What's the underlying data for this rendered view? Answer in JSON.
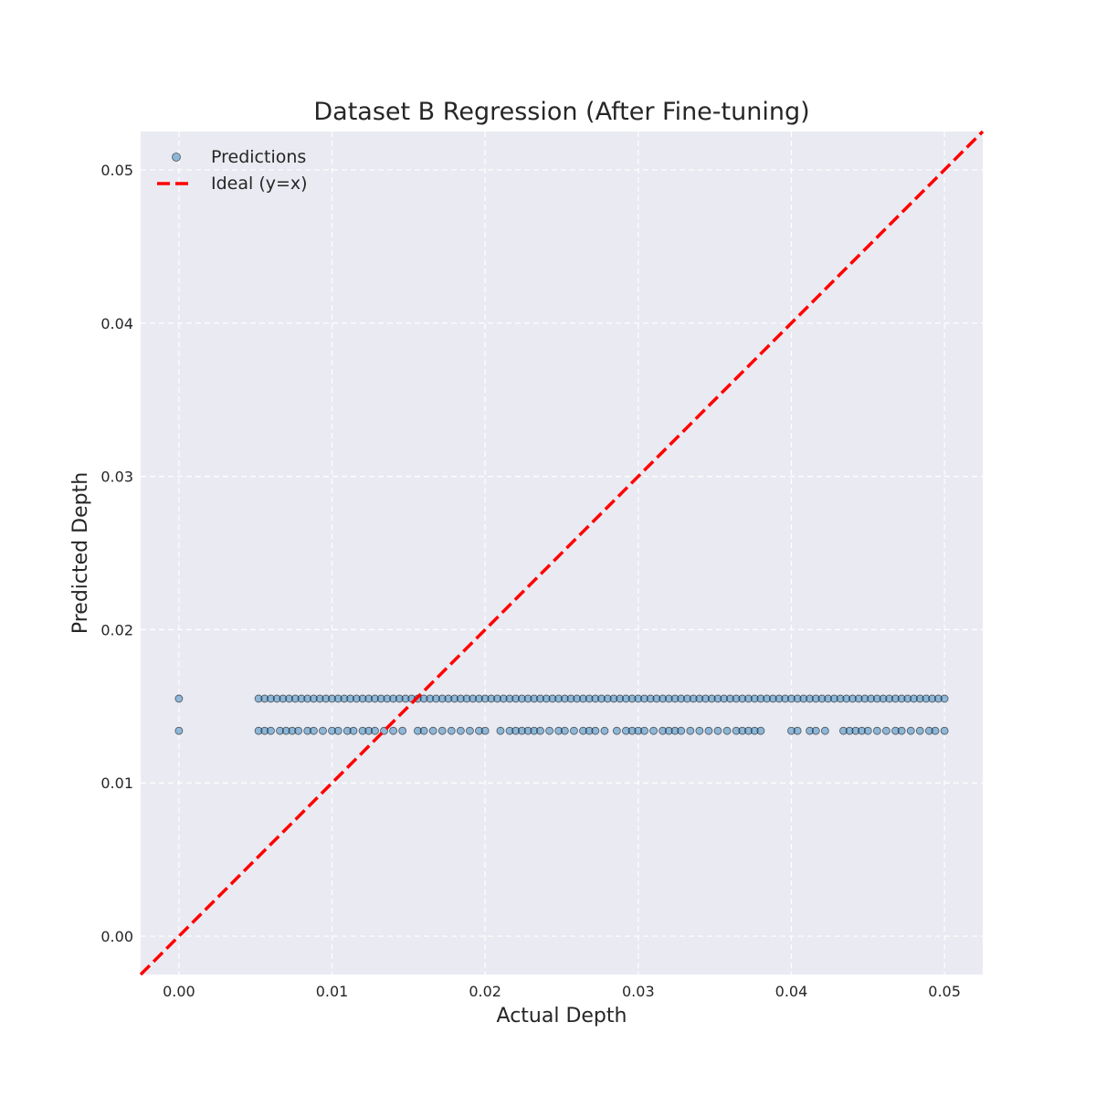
{
  "chart_data": {
    "type": "scatter",
    "title": "Dataset B Regression (After Fine-tuning)",
    "xlabel": "Actual Depth",
    "ylabel": "Predicted Depth",
    "xlim": [
      -0.0025,
      0.0525
    ],
    "ylim": [
      -0.0025,
      0.0525
    ],
    "xticks": [
      "0.00",
      "0.01",
      "0.02",
      "0.03",
      "0.04",
      "0.05"
    ],
    "yticks": [
      "0.00",
      "0.01",
      "0.02",
      "0.03",
      "0.04",
      "0.05"
    ],
    "grid": true,
    "grid_style": "dashed",
    "background": "#eaeaf2",
    "legend": {
      "placement": "top-left",
      "entries": [
        "Predictions",
        "Ideal (y=x)"
      ]
    },
    "series": [
      {
        "name": "Predictions",
        "kind": "scatter",
        "color": "#1f77b4",
        "edge_color": "#000000",
        "alpha": 0.45,
        "points": [
          [
            0.0,
            0.0155
          ],
          [
            0.0,
            0.0134
          ],
          [
            0.0052,
            0.0155
          ],
          [
            0.0056,
            0.0155
          ],
          [
            0.006,
            0.0155
          ],
          [
            0.0064,
            0.0155
          ],
          [
            0.0068,
            0.0155
          ],
          [
            0.0072,
            0.0155
          ],
          [
            0.0076,
            0.0155
          ],
          [
            0.008,
            0.0155
          ],
          [
            0.0084,
            0.0155
          ],
          [
            0.0088,
            0.0155
          ],
          [
            0.0092,
            0.0155
          ],
          [
            0.0096,
            0.0155
          ],
          [
            0.01,
            0.0155
          ],
          [
            0.0104,
            0.0155
          ],
          [
            0.0108,
            0.0155
          ],
          [
            0.0112,
            0.0155
          ],
          [
            0.0116,
            0.0155
          ],
          [
            0.012,
            0.0155
          ],
          [
            0.0124,
            0.0155
          ],
          [
            0.0128,
            0.0155
          ],
          [
            0.0132,
            0.0155
          ],
          [
            0.0136,
            0.0155
          ],
          [
            0.014,
            0.0155
          ],
          [
            0.0144,
            0.0155
          ],
          [
            0.0148,
            0.0155
          ],
          [
            0.0152,
            0.0155
          ],
          [
            0.0156,
            0.0155
          ],
          [
            0.016,
            0.0155
          ],
          [
            0.0164,
            0.0155
          ],
          [
            0.0168,
            0.0155
          ],
          [
            0.0172,
            0.0155
          ],
          [
            0.0176,
            0.0155
          ],
          [
            0.018,
            0.0155
          ],
          [
            0.0184,
            0.0155
          ],
          [
            0.0188,
            0.0155
          ],
          [
            0.0192,
            0.0155
          ],
          [
            0.0196,
            0.0155
          ],
          [
            0.02,
            0.0155
          ],
          [
            0.0204,
            0.0155
          ],
          [
            0.0208,
            0.0155
          ],
          [
            0.0212,
            0.0155
          ],
          [
            0.0216,
            0.0155
          ],
          [
            0.022,
            0.0155
          ],
          [
            0.0224,
            0.0155
          ],
          [
            0.0228,
            0.0155
          ],
          [
            0.0232,
            0.0155
          ],
          [
            0.0236,
            0.0155
          ],
          [
            0.024,
            0.0155
          ],
          [
            0.0244,
            0.0155
          ],
          [
            0.0248,
            0.0155
          ],
          [
            0.0252,
            0.0155
          ],
          [
            0.0256,
            0.0155
          ],
          [
            0.026,
            0.0155
          ],
          [
            0.0264,
            0.0155
          ],
          [
            0.0268,
            0.0155
          ],
          [
            0.0272,
            0.0155
          ],
          [
            0.0276,
            0.0155
          ],
          [
            0.028,
            0.0155
          ],
          [
            0.0284,
            0.0155
          ],
          [
            0.0288,
            0.0155
          ],
          [
            0.0292,
            0.0155
          ],
          [
            0.0296,
            0.0155
          ],
          [
            0.03,
            0.0155
          ],
          [
            0.0304,
            0.0155
          ],
          [
            0.0308,
            0.0155
          ],
          [
            0.0312,
            0.0155
          ],
          [
            0.0316,
            0.0155
          ],
          [
            0.032,
            0.0155
          ],
          [
            0.0324,
            0.0155
          ],
          [
            0.0328,
            0.0155
          ],
          [
            0.0332,
            0.0155
          ],
          [
            0.0336,
            0.0155
          ],
          [
            0.034,
            0.0155
          ],
          [
            0.0344,
            0.0155
          ],
          [
            0.0348,
            0.0155
          ],
          [
            0.0352,
            0.0155
          ],
          [
            0.0356,
            0.0155
          ],
          [
            0.036,
            0.0155
          ],
          [
            0.0364,
            0.0155
          ],
          [
            0.0368,
            0.0155
          ],
          [
            0.0372,
            0.0155
          ],
          [
            0.0376,
            0.0155
          ],
          [
            0.038,
            0.0155
          ],
          [
            0.0384,
            0.0155
          ],
          [
            0.0388,
            0.0155
          ],
          [
            0.0392,
            0.0155
          ],
          [
            0.0396,
            0.0155
          ],
          [
            0.04,
            0.0155
          ],
          [
            0.0404,
            0.0155
          ],
          [
            0.0408,
            0.0155
          ],
          [
            0.0412,
            0.0155
          ],
          [
            0.0416,
            0.0155
          ],
          [
            0.042,
            0.0155
          ],
          [
            0.0424,
            0.0155
          ],
          [
            0.0428,
            0.0155
          ],
          [
            0.0432,
            0.0155
          ],
          [
            0.0436,
            0.0155
          ],
          [
            0.044,
            0.0155
          ],
          [
            0.0444,
            0.0155
          ],
          [
            0.0448,
            0.0155
          ],
          [
            0.0452,
            0.0155
          ],
          [
            0.0456,
            0.0155
          ],
          [
            0.046,
            0.0155
          ],
          [
            0.0464,
            0.0155
          ],
          [
            0.0468,
            0.0155
          ],
          [
            0.0472,
            0.0155
          ],
          [
            0.0476,
            0.0155
          ],
          [
            0.048,
            0.0155
          ],
          [
            0.0484,
            0.0155
          ],
          [
            0.0488,
            0.0155
          ],
          [
            0.0492,
            0.0155
          ],
          [
            0.0496,
            0.0155
          ],
          [
            0.05,
            0.0155
          ],
          [
            0.0052,
            0.0134
          ],
          [
            0.0056,
            0.0134
          ],
          [
            0.006,
            0.0134
          ],
          [
            0.0066,
            0.0134
          ],
          [
            0.007,
            0.0134
          ],
          [
            0.0074,
            0.0134
          ],
          [
            0.0078,
            0.0134
          ],
          [
            0.0084,
            0.0134
          ],
          [
            0.0088,
            0.0134
          ],
          [
            0.0094,
            0.0134
          ],
          [
            0.01,
            0.0134
          ],
          [
            0.0104,
            0.0134
          ],
          [
            0.011,
            0.0134
          ],
          [
            0.0114,
            0.0134
          ],
          [
            0.012,
            0.0134
          ],
          [
            0.0124,
            0.0134
          ],
          [
            0.0128,
            0.0134
          ],
          [
            0.0134,
            0.0134
          ],
          [
            0.014,
            0.0134
          ],
          [
            0.0146,
            0.0134
          ],
          [
            0.0156,
            0.0134
          ],
          [
            0.016,
            0.0134
          ],
          [
            0.0166,
            0.0134
          ],
          [
            0.0172,
            0.0134
          ],
          [
            0.0178,
            0.0134
          ],
          [
            0.0184,
            0.0134
          ],
          [
            0.019,
            0.0134
          ],
          [
            0.0196,
            0.0134
          ],
          [
            0.02,
            0.0134
          ],
          [
            0.021,
            0.0134
          ],
          [
            0.0216,
            0.0134
          ],
          [
            0.022,
            0.0134
          ],
          [
            0.0224,
            0.0134
          ],
          [
            0.0228,
            0.0134
          ],
          [
            0.0232,
            0.0134
          ],
          [
            0.0236,
            0.0134
          ],
          [
            0.0242,
            0.0134
          ],
          [
            0.0248,
            0.0134
          ],
          [
            0.0252,
            0.0134
          ],
          [
            0.0258,
            0.0134
          ],
          [
            0.0264,
            0.0134
          ],
          [
            0.0268,
            0.0134
          ],
          [
            0.0272,
            0.0134
          ],
          [
            0.0278,
            0.0134
          ],
          [
            0.0286,
            0.0134
          ],
          [
            0.0292,
            0.0134
          ],
          [
            0.0296,
            0.0134
          ],
          [
            0.03,
            0.0134
          ],
          [
            0.0304,
            0.0134
          ],
          [
            0.031,
            0.0134
          ],
          [
            0.0316,
            0.0134
          ],
          [
            0.032,
            0.0134
          ],
          [
            0.0324,
            0.0134
          ],
          [
            0.0328,
            0.0134
          ],
          [
            0.0334,
            0.0134
          ],
          [
            0.034,
            0.0134
          ],
          [
            0.0346,
            0.0134
          ],
          [
            0.0352,
            0.0134
          ],
          [
            0.0358,
            0.0134
          ],
          [
            0.0364,
            0.0134
          ],
          [
            0.0368,
            0.0134
          ],
          [
            0.0372,
            0.0134
          ],
          [
            0.0376,
            0.0134
          ],
          [
            0.038,
            0.0134
          ],
          [
            0.04,
            0.0134
          ],
          [
            0.0404,
            0.0134
          ],
          [
            0.0412,
            0.0134
          ],
          [
            0.0416,
            0.0134
          ],
          [
            0.0422,
            0.0134
          ],
          [
            0.0434,
            0.0134
          ],
          [
            0.0438,
            0.0134
          ],
          [
            0.0442,
            0.0134
          ],
          [
            0.0446,
            0.0134
          ],
          [
            0.045,
            0.0134
          ],
          [
            0.0456,
            0.0134
          ],
          [
            0.0462,
            0.0134
          ],
          [
            0.0468,
            0.0134
          ],
          [
            0.0472,
            0.0134
          ],
          [
            0.0478,
            0.0134
          ],
          [
            0.0484,
            0.0134
          ],
          [
            0.049,
            0.0134
          ],
          [
            0.0494,
            0.0134
          ],
          [
            0.05,
            0.0134
          ]
        ]
      },
      {
        "name": "Ideal (y=x)",
        "kind": "line",
        "color": "#ff0000",
        "style": "dashed",
        "x": [
          -0.0025,
          0.0525
        ],
        "y": [
          -0.0025,
          0.0525
        ]
      }
    ]
  }
}
